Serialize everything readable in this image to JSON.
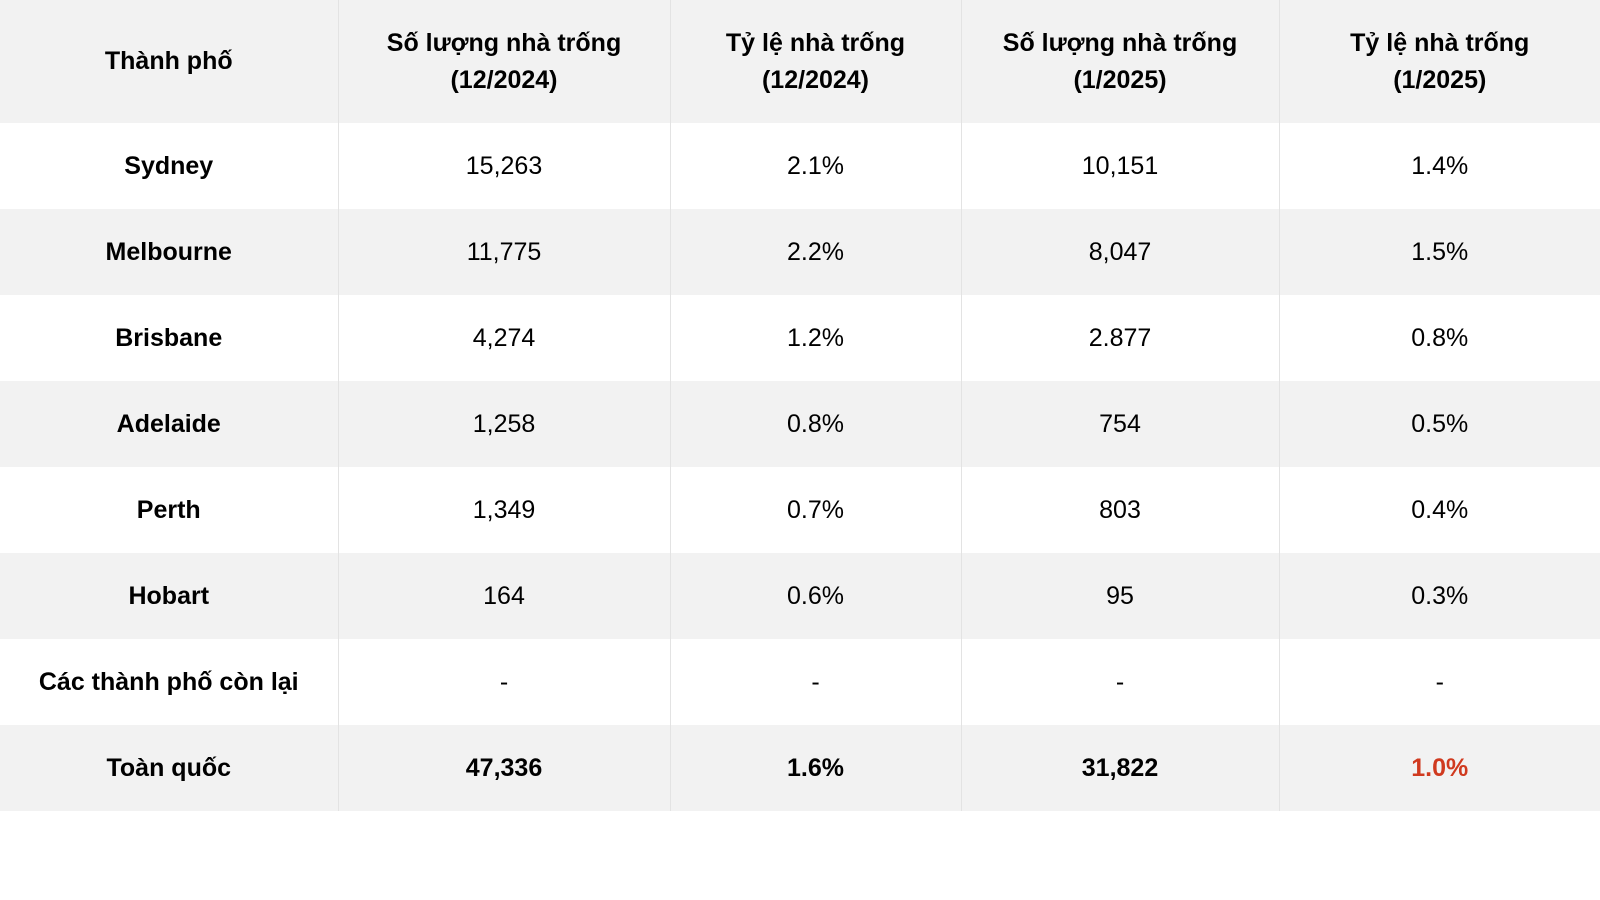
{
  "table": {
    "headers": [
      {
        "line1": "Thành phố",
        "line2": ""
      },
      {
        "line1": "Số lượng nhà trống",
        "line2": "(12/2024)"
      },
      {
        "line1": "Tỷ lệ nhà trống",
        "line2": "(12/2024)"
      },
      {
        "line1": "Số lượng nhà trống",
        "line2": "(1/2025)"
      },
      {
        "line1": "Tỷ lệ nhà trống",
        "line2": "(1/2025)"
      }
    ],
    "rows": [
      {
        "city": "Sydney",
        "count_dec": "15,263",
        "rate_dec": "2.1%",
        "count_jan": "10,151",
        "rate_jan": "1.4%"
      },
      {
        "city": "Melbourne",
        "count_dec": "11,775",
        "rate_dec": "2.2%",
        "count_jan": "8,047",
        "rate_jan": "1.5%"
      },
      {
        "city": "Brisbane",
        "count_dec": "4,274",
        "rate_dec": "1.2%",
        "count_jan": "2.877",
        "rate_jan": "0.8%"
      },
      {
        "city": "Adelaide",
        "count_dec": "1,258",
        "rate_dec": "0.8%",
        "count_jan": "754",
        "rate_jan": "0.5%"
      },
      {
        "city": "Perth",
        "count_dec": "1,349",
        "rate_dec": "0.7%",
        "count_jan": "803",
        "rate_jan": "0.4%"
      },
      {
        "city": "Hobart",
        "count_dec": "164",
        "rate_dec": "0.6%",
        "count_jan": "95",
        "rate_jan": "0.3%"
      },
      {
        "city": "Các thành phố còn lại",
        "count_dec": "-",
        "rate_dec": "-",
        "count_jan": "-",
        "rate_jan": "-"
      }
    ],
    "total": {
      "city": "Toàn quốc",
      "count_dec": "47,336",
      "rate_dec": "1.6%",
      "count_jan": "31,822",
      "rate_jan": "1.0%"
    },
    "colors": {
      "header_bg": "#f2f2f2",
      "stripe_bg": "#f2f2f2",
      "highlight": "#d03a1f"
    }
  }
}
